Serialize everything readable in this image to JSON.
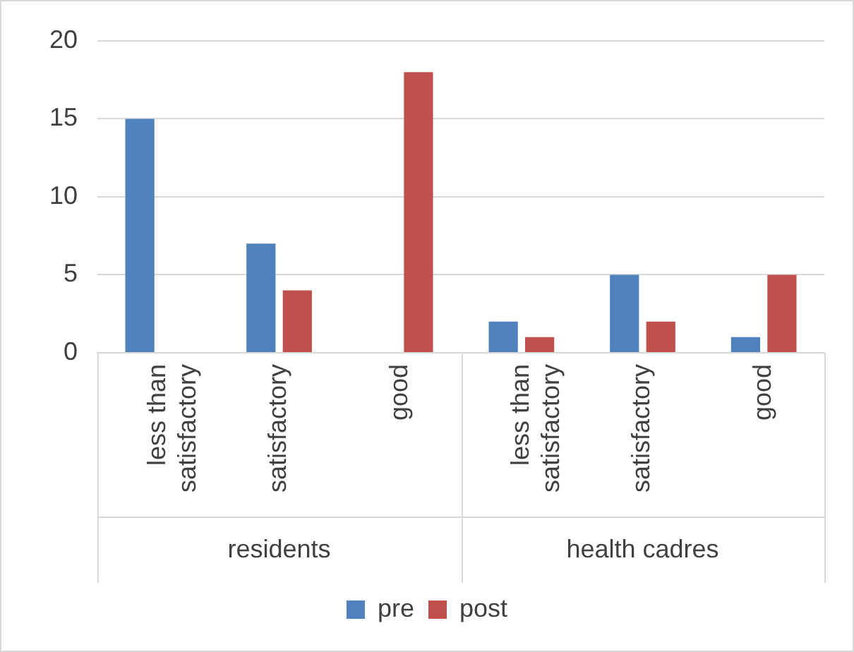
{
  "chart_data": {
    "type": "bar",
    "categories": [
      "less than satisfactory",
      "satisfactory",
      "good",
      "less than satisfactory",
      "satisfactory",
      "good"
    ],
    "series": [
      {
        "name": "pre",
        "color": "#4f81bd",
        "values": [
          15,
          7,
          0,
          2,
          5,
          1
        ]
      },
      {
        "name": "post",
        "color": "#c0504d",
        "values": [
          0,
          4,
          18,
          1,
          2,
          5
        ]
      }
    ],
    "ylim": [
      0,
      20
    ],
    "yticks": [
      0,
      5,
      10,
      15,
      20
    ],
    "grid": "y",
    "legend": "bottom",
    "annotations": [
      "residents",
      "health cadres"
    ]
  }
}
